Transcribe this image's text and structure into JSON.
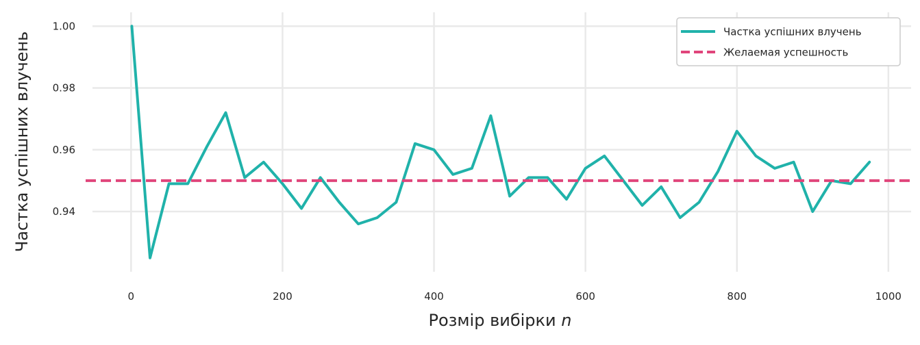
{
  "chart_data": {
    "type": "line",
    "xlabel": "Розмір вибірки ",
    "xlabel_var": "n",
    "ylabel": "Частка успішних влучень",
    "xlim": [
      -60,
      1030
    ],
    "ylim": [
      0.9205,
      1.0045
    ],
    "xticks": [
      0,
      200,
      400,
      600,
      800,
      1000
    ],
    "yticks": [
      0.94,
      0.96,
      0.98,
      1.0
    ],
    "ytick_labels": [
      "0.94",
      "0.96",
      "0.98",
      "1.00"
    ],
    "grid": true,
    "legend_position": "top-right",
    "series": [
      {
        "name": "Частка успішних влучень",
        "color": "#20b2aa",
        "style": "solid",
        "x": [
          1,
          25,
          50,
          75,
          100,
          125,
          150,
          175,
          200,
          225,
          250,
          275,
          300,
          325,
          350,
          375,
          400,
          425,
          450,
          475,
          500,
          525,
          550,
          575,
          600,
          625,
          650,
          675,
          700,
          725,
          750,
          775,
          800,
          825,
          850,
          875,
          900,
          925,
          950,
          975
        ],
        "y": [
          1.0,
          0.925,
          0.949,
          0.949,
          0.961,
          0.972,
          0.951,
          0.956,
          0.949,
          0.941,
          0.951,
          0.943,
          0.936,
          0.938,
          0.943,
          0.962,
          0.96,
          0.952,
          0.954,
          0.971,
          0.945,
          0.951,
          0.951,
          0.944,
          0.954,
          0.958,
          0.95,
          0.942,
          0.948,
          0.938,
          0.943,
          0.953,
          0.966,
          0.958,
          0.954,
          0.956,
          0.94,
          0.95,
          0.949,
          0.956
        ]
      },
      {
        "name": "Желаемая успешность",
        "color": "#e0457b",
        "style": "dashed",
        "hline": 0.95
      }
    ]
  }
}
